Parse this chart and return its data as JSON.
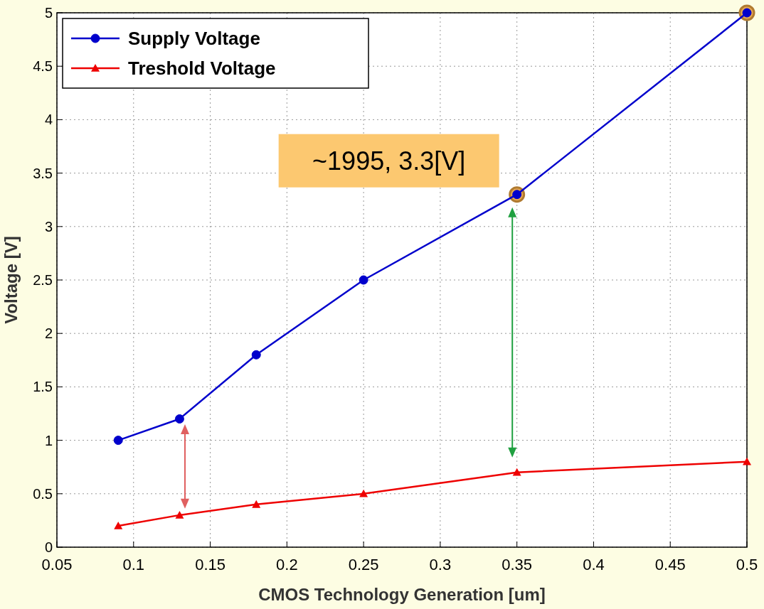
{
  "chart_data": {
    "type": "line",
    "xlabel": "CMOS Technology Generation [um]",
    "ylabel": "Voltage [V]",
    "xlim": [
      0.05,
      0.5
    ],
    "xticks": [
      0.05,
      0.1,
      0.15,
      0.2,
      0.25,
      0.3,
      0.35,
      0.4,
      0.45,
      0.5
    ],
    "ylim": [
      0,
      5
    ],
    "yticks": [
      0,
      0.5,
      1,
      1.5,
      2,
      2.5,
      3,
      3.5,
      4,
      4.5,
      5
    ],
    "grid": true,
    "legend": "top left",
    "line_style": "solid",
    "series": [
      {
        "name": "Supply Voltage",
        "color": "#0000cc",
        "marker": "circle",
        "x": [
          0.09,
          0.13,
          0.18,
          0.25,
          0.35,
          0.5
        ],
        "values": [
          1.0,
          1.2,
          1.8,
          2.5,
          3.3,
          5
        ]
      },
      {
        "name": "Treshold Voltage",
        "color": "#ee0000",
        "marker": "triangle",
        "x": [
          0.09,
          0.13,
          0.18,
          0.25,
          0.35,
          0.5
        ],
        "values": [
          0.2,
          0.3,
          0.4,
          0.5,
          0.7,
          0.8
        ]
      },
      {
        "type": "scatter",
        "color": "#e8a850",
        "marker": "circle",
        "x": [
          0.35,
          0.5
        ],
        "values": [
          3.3,
          5
        ]
      }
    ],
    "annotations": [
      {
        "text": "~1995, 3.3[V]",
        "x": 0.35,
        "y": 3.3
      }
    ]
  }
}
